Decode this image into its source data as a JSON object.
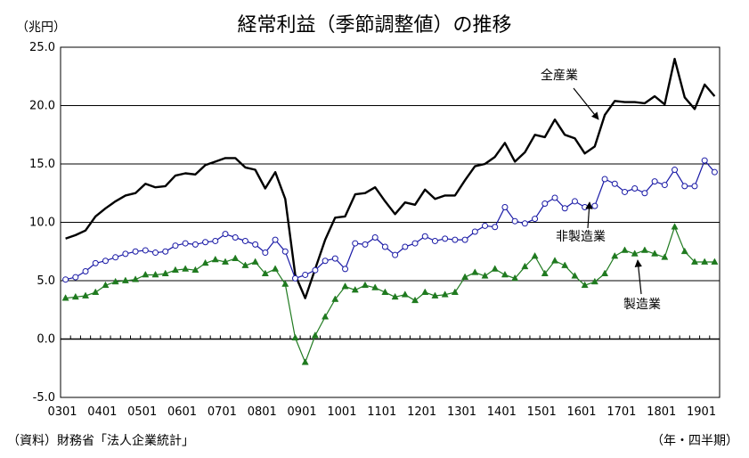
{
  "title": "経常利益（季節調整値）の推移",
  "unit_label": "（兆円）",
  "source_label": "（資料）財務省「法人企業統計」",
  "period_label": "（年・四半期）",
  "colors": {
    "all_industries": "#000000",
    "non_manufacturing": "#1a1aa6",
    "manufacturing": "#1f7a1f",
    "grid": "#000000"
  },
  "chart_data": {
    "type": "line",
    "title": "経常利益（季節調整値）の推移",
    "ylabel": "（兆円）",
    "xlabel": "（年・四半期）",
    "ylim": [
      -5,
      25
    ],
    "yticks": [
      25.0,
      20.0,
      15.0,
      10.0,
      5.0,
      0.0,
      -5.0
    ],
    "ytick_labels": [
      "25.0",
      "20.0",
      "15.0",
      "10.0",
      "5.0",
      "0.0",
      "-5.0"
    ],
    "xtick_labels": [
      "0301",
      "0401",
      "0501",
      "0601",
      "0701",
      "0801",
      "0901",
      "1001",
      "1101",
      "1201",
      "1301",
      "1401",
      "1501",
      "1601",
      "1701",
      "1801",
      "1901"
    ],
    "x_start": "2003Q1",
    "n_points": 66,
    "grid": "horizontal major lines",
    "series": [
      {
        "name": "全産業",
        "values": [
          8.6,
          8.9,
          9.3,
          10.5,
          11.2,
          11.8,
          12.3,
          12.5,
          13.3,
          13.0,
          13.1,
          14.0,
          14.2,
          14.1,
          14.9,
          15.2,
          15.5,
          15.5,
          14.7,
          14.5,
          12.9,
          14.3,
          12.0,
          5.5,
          3.5,
          6.0,
          8.5,
          10.4,
          10.5,
          12.4,
          12.5,
          13.0,
          11.8,
          10.7,
          11.7,
          11.5,
          12.8,
          12.0,
          12.3,
          12.3,
          13.6,
          14.8,
          15.0,
          15.6,
          16.8,
          15.2,
          16.0,
          17.5,
          17.3,
          18.8,
          17.5,
          17.2,
          15.9,
          16.5,
          19.2,
          20.4,
          20.3,
          20.3,
          20.2,
          20.8,
          20.1,
          24.0,
          20.7,
          19.7,
          21.8,
          20.8
        ],
        "label_text": "全産業"
      },
      {
        "name": "非製造業",
        "values": [
          5.1,
          5.3,
          5.8,
          6.5,
          6.7,
          7.0,
          7.3,
          7.5,
          7.6,
          7.4,
          7.5,
          8.0,
          8.2,
          8.1,
          8.3,
          8.4,
          9.0,
          8.7,
          8.4,
          8.1,
          7.4,
          8.5,
          7.5,
          5.2,
          5.5,
          5.9,
          6.7,
          6.9,
          6.0,
          8.2,
          8.1,
          8.7,
          7.9,
          7.2,
          7.9,
          8.2,
          8.8,
          8.4,
          8.6,
          8.5,
          8.5,
          9.2,
          9.7,
          9.6,
          11.3,
          10.1,
          9.9,
          10.3,
          11.6,
          12.1,
          11.2,
          11.8,
          11.3,
          11.4,
          13.7,
          13.3,
          12.6,
          12.9,
          12.5,
          13.5,
          13.2,
          14.5,
          13.1,
          13.1,
          15.3,
          14.3
        ],
        "label_text": "非製造業"
      },
      {
        "name": "製造業",
        "values": [
          3.5,
          3.6,
          3.7,
          4.0,
          4.6,
          4.9,
          5.0,
          5.1,
          5.5,
          5.5,
          5.6,
          5.9,
          6.0,
          5.9,
          6.5,
          6.8,
          6.6,
          6.9,
          6.3,
          6.6,
          5.6,
          6.0,
          4.7,
          0.1,
          -2.0,
          0.3,
          1.9,
          3.4,
          4.5,
          4.2,
          4.6,
          4.4,
          4.0,
          3.6,
          3.8,
          3.3,
          4.0,
          3.7,
          3.8,
          4.0,
          5.3,
          5.7,
          5.4,
          6.0,
          5.5,
          5.2,
          6.2,
          7.1,
          5.6,
          6.7,
          6.3,
          5.4,
          4.6,
          4.9,
          5.6,
          7.1,
          7.6,
          7.3,
          7.6,
          7.3,
          7.0,
          9.6,
          7.5,
          6.6,
          6.6,
          6.6
        ],
        "label_text": "製造業"
      }
    ]
  }
}
